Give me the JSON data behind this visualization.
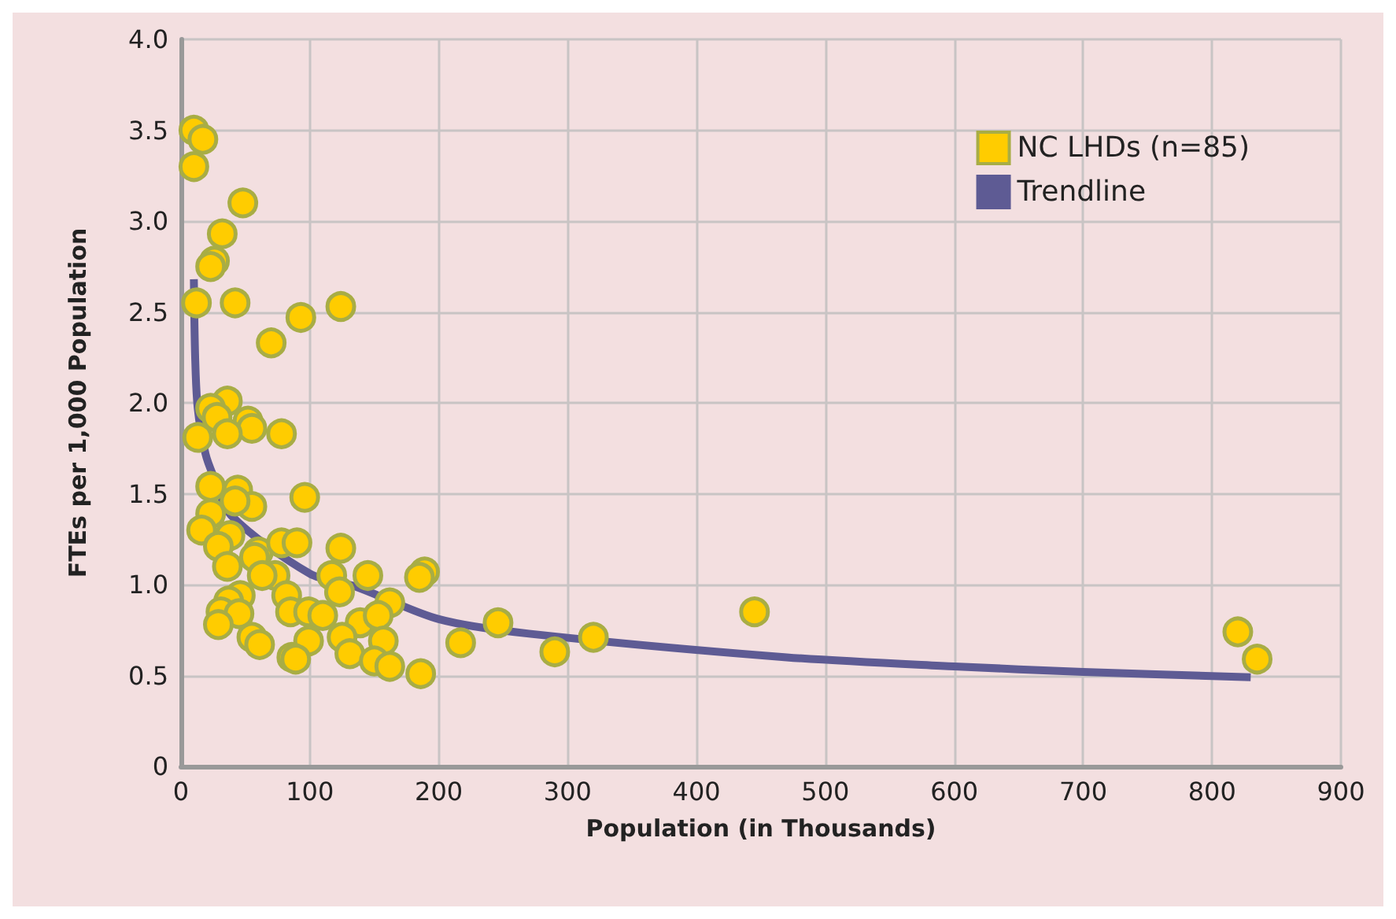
{
  "chart_data": {
    "type": "scatter",
    "xlabel": "Population (in Thousands)",
    "ylabel": "FTEs per 1,000 Population",
    "xlim": [
      0,
      900
    ],
    "xticks": [
      0,
      100,
      200,
      300,
      400,
      500,
      600,
      700,
      800,
      900
    ],
    "ylim": [
      0,
      4
    ],
    "yticks": [
      0,
      {
        "value": 0.5,
        "label": "0.5"
      },
      {
        "value": 1,
        "label": "1.0"
      },
      {
        "value": 1.5,
        "label": "1.5"
      },
      {
        "value": 2,
        "label": "2.0"
      },
      {
        "value": 2.5,
        "label": "2.5"
      },
      {
        "value": 3,
        "label": "3.0"
      },
      {
        "value": 3.5,
        "label": "3.5"
      },
      {
        "value": 4,
        "label": "4.0"
      }
    ],
    "grid": true,
    "legend": "top right",
    "marker": "circle",
    "series": [
      {
        "name": "NC LHDs (n=85)",
        "color": "#ffcc00",
        "x": [
          10,
          17,
          10,
          48,
          32,
          26,
          23,
          12,
          42,
          93,
          124,
          70,
          36,
          23,
          28,
          52,
          55,
          36,
          78,
          13,
          23,
          44,
          96,
          55,
          42,
          23,
          16,
          38,
          29,
          60,
          78,
          90,
          124,
          57,
          73,
          63,
          36,
          117,
          145,
          189,
          185,
          162,
          123,
          82,
          46,
          37,
          31,
          45,
          85,
          99,
          139,
          153,
          29,
          110,
          55,
          61,
          99,
          125,
          157,
          86,
          89,
          131,
          150,
          162,
          186,
          217,
          246,
          290,
          320,
          445,
          820,
          835
        ],
        "values": [
          3.5,
          3.45,
          3.3,
          3.1,
          2.93,
          2.78,
          2.75,
          2.55,
          2.55,
          2.47,
          2.53,
          2.33,
          2.01,
          1.97,
          1.92,
          1.9,
          1.86,
          1.83,
          1.83,
          1.81,
          1.54,
          1.52,
          1.48,
          1.43,
          1.46,
          1.39,
          1.3,
          1.27,
          1.21,
          1.18,
          1.23,
          1.23,
          1.2,
          1.15,
          1.05,
          1.05,
          1.1,
          1.05,
          1.05,
          1.07,
          1.04,
          0.9,
          0.96,
          0.94,
          0.94,
          0.91,
          0.85,
          0.84,
          0.85,
          0.85,
          0.79,
          0.83,
          0.78,
          0.83,
          0.71,
          0.67,
          0.69,
          0.71,
          0.69,
          0.6,
          0.59,
          0.62,
          0.58,
          0.55,
          0.51,
          0.68,
          0.79,
          0.63,
          0.71,
          0.85,
          0.74,
          0.59
        ]
      },
      {
        "name": "Trendline",
        "type": "line",
        "color": "#5e5b94",
        "marker": "none",
        "x": [
          10,
          11,
          13,
          19,
          25,
          39,
          100,
          135,
          200,
          270,
          470,
          600,
          700,
          830
        ],
        "values": [
          2.68,
          2.25,
          1.97,
          1.72,
          1.6,
          1.38,
          1.06,
          0.99,
          0.81,
          0.73,
          0.6,
          0.55,
          0.52,
          0.49
        ]
      }
    ]
  }
}
